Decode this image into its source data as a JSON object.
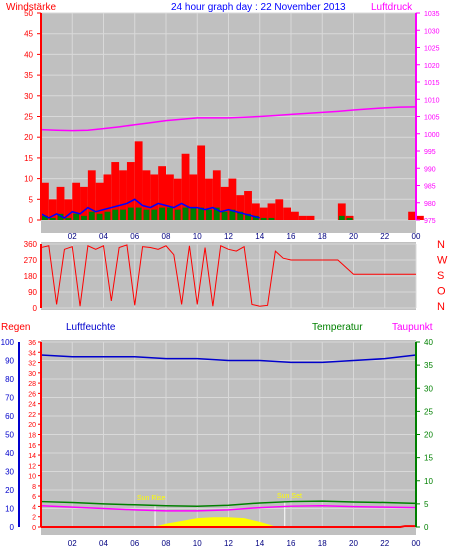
{
  "header": {
    "windstaerke": "Windstärke",
    "title": "24 hour graph day : 22 November 2013",
    "luftdruck": "Luftdruck"
  },
  "labels": {
    "regen": "Regen",
    "luftfeuchte": "Luftfeuchte",
    "temperatur": "Temperatur",
    "taupunkt": "Taupunkt",
    "compass": [
      "N",
      "W",
      "S",
      "O",
      "N"
    ],
    "sun_left": "Sun Rise",
    "sun_right": "Sun Set"
  },
  "colors": {
    "panel_bg": "#c0c0c0",
    "grid": "#d9d9d9",
    "wind": "#ff0000",
    "wind_avg": "#0000ff",
    "gust_bars": "#008000",
    "pressure": "#ff00ff",
    "direction": "#ff0000",
    "humidity": "#0000cc",
    "temperature": "#008000",
    "dewpoint": "#ff00ff",
    "rain": "#ff0000",
    "solar": "#ffff00",
    "left_axis_red": "#ff0000",
    "left_axis_blue": "#0000cc",
    "right_axis_green": "#008000",
    "right_axis_magenta": "#ff00ff"
  },
  "chart_data": [
    {
      "type": "line",
      "name": "wind_pressure",
      "x_ticks": [
        "02",
        "04",
        "06",
        "08",
        "10",
        "12",
        "14",
        "16",
        "18",
        "20",
        "22",
        "00"
      ],
      "y_left_ticks": [
        0,
        5,
        10,
        15,
        20,
        25,
        30,
        35,
        40,
        45,
        50
      ],
      "y_right_ticks": [
        975,
        980,
        985,
        990,
        995,
        1000,
        1005,
        1010,
        1015,
        1020,
        1025,
        1030,
        1035
      ],
      "ylim_left": [
        0,
        50
      ],
      "ylim_right": [
        975,
        1035
      ],
      "pressure_series": {
        "x": [
          0,
          1,
          2,
          3,
          4,
          5,
          6,
          7,
          8,
          9,
          10,
          11,
          12,
          13,
          14,
          15,
          16,
          17,
          18,
          19,
          20,
          21,
          22,
          23,
          24
        ],
        "values": [
          1001.2,
          1001,
          1000.9,
          1001,
          1001.5,
          1002,
          1002.6,
          1003.2,
          1003.8,
          1004.2,
          1004.6,
          1004.6,
          1004.6,
          1004.8,
          1005,
          1005.3,
          1005.6,
          1005.9,
          1006.2,
          1006.5,
          1006.9,
          1007.2,
          1007.5,
          1007.7,
          1007.8
        ]
      },
      "wind_avg_series": {
        "x": [
          0,
          0.5,
          1,
          1.5,
          2,
          2.5,
          3,
          3.5,
          4,
          4.5,
          5,
          5.5,
          6,
          6.5,
          7,
          7.5,
          8,
          8.5,
          9,
          9.5,
          10,
          10.5,
          11,
          11.5,
          12,
          12.5,
          13,
          13.5,
          14
        ],
        "values": [
          1.5,
          0.5,
          1.5,
          0.5,
          2,
          1.5,
          3,
          2,
          2.5,
          3,
          3.5,
          4,
          5,
          3.5,
          3,
          4,
          3.5,
          3,
          4,
          3,
          3,
          2.5,
          3,
          2,
          2.5,
          2,
          1.5,
          1,
          0.5
        ]
      },
      "wind_max_series": {
        "x": [
          0,
          0.5,
          1,
          1.5,
          2,
          2.5,
          3,
          3.5,
          4,
          4.5,
          5,
          5.5,
          6,
          6.5,
          7,
          7.5,
          8,
          8.5,
          9,
          9.5,
          10,
          10.5,
          11,
          11.5,
          12,
          12.5,
          13,
          13.5,
          14,
          14.5,
          15,
          15.5,
          16,
          16.5,
          17,
          17.5,
          18,
          18.5,
          19,
          19.5,
          20,
          20.5,
          21,
          21.5,
          22,
          22.5,
          23,
          23.5,
          24
        ],
        "values": [
          9,
          5,
          8,
          5,
          9,
          8,
          12,
          9,
          11,
          14,
          12,
          14,
          19,
          12,
          11,
          13,
          11,
          10,
          16,
          11,
          18,
          10,
          12,
          8,
          10,
          6,
          7,
          4,
          3,
          4,
          5,
          3,
          2,
          1,
          1,
          0,
          0,
          0,
          4,
          1,
          0,
          0,
          0,
          0,
          0,
          0,
          0,
          2,
          1
        ]
      },
      "gust_series": {
        "x": [
          0,
          0.5,
          1,
          1.5,
          2,
          2.5,
          3,
          3.5,
          4,
          4.5,
          5,
          5.5,
          6,
          6.5,
          7,
          7.5,
          8,
          8.5,
          9,
          9.5,
          10,
          10.5,
          11,
          11.5,
          12,
          12.5,
          13,
          13.5,
          14,
          14.5,
          19,
          19.5
        ],
        "values": [
          1,
          0.5,
          1.5,
          0.5,
          1.5,
          1,
          2,
          1.5,
          2,
          2.5,
          2.5,
          3,
          3,
          2.5,
          2.5,
          3,
          3,
          2.5,
          3,
          3,
          3,
          2.5,
          3,
          2,
          2.5,
          2,
          1.5,
          1,
          0.5,
          0.5,
          1,
          0.5
        ]
      }
    },
    {
      "type": "line",
      "name": "wind_direction",
      "y_ticks": [
        0,
        90,
        180,
        270,
        360
      ],
      "ylim": [
        0,
        360
      ],
      "x": [
        0,
        0.5,
        1,
        1.5,
        2,
        2.5,
        3,
        3.5,
        4,
        4.5,
        5,
        5.5,
        6,
        6.5,
        7,
        7.5,
        8,
        8.5,
        9,
        9.5,
        10,
        10.5,
        11,
        11.5,
        12,
        12.5,
        13,
        13.5,
        14,
        14.5,
        15,
        15.5,
        16,
        17,
        18,
        19,
        20,
        21,
        22,
        23,
        24
      ],
      "values": [
        340,
        350,
        20,
        330,
        345,
        10,
        350,
        330,
        350,
        40,
        340,
        355,
        15,
        345,
        340,
        330,
        350,
        300,
        20,
        350,
        20,
        340,
        10,
        350,
        330,
        320,
        345,
        20,
        10,
        15,
        320,
        280,
        270,
        270,
        270,
        270,
        190,
        190,
        190,
        190,
        190
      ]
    },
    {
      "type": "line",
      "name": "weather",
      "y_left_ticks": [
        0,
        10,
        20,
        30,
        40,
        50,
        60,
        70,
        80,
        90,
        100
      ],
      "y_left2_ticks": [
        0,
        2,
        4,
        6,
        8,
        10,
        12,
        14,
        16,
        18,
        20,
        22,
        24,
        26,
        28,
        30,
        32,
        34,
        36
      ],
      "y_right_ticks": [
        0,
        5,
        10,
        15,
        20,
        25,
        30,
        35,
        40
      ],
      "ylim_left": [
        0,
        100
      ],
      "ylim_right": [
        0,
        40
      ],
      "humidity_series": {
        "x": [
          0,
          2,
          4,
          6,
          8,
          10,
          12,
          14,
          16,
          18,
          20,
          22,
          24
        ],
        "values": [
          93,
          92,
          92,
          92,
          91,
          91,
          90,
          90,
          89,
          89,
          90,
          91,
          93
        ]
      },
      "temperature_series": {
        "x": [
          0,
          2,
          4,
          6,
          8,
          10,
          12,
          14,
          16,
          18,
          20,
          22,
          24
        ],
        "values": [
          5.5,
          5.3,
          5,
          4.8,
          4.6,
          4.5,
          4.7,
          5.2,
          5.5,
          5.6,
          5.4,
          5.3,
          5.1
        ]
      },
      "dewpoint_series": {
        "x": [
          0,
          2,
          4,
          6,
          8,
          10,
          12,
          14,
          16,
          18,
          20,
          22,
          24
        ],
        "values": [
          4.6,
          4.3,
          4,
          3.7,
          3.5,
          3.5,
          3.7,
          4.2,
          4.5,
          4.6,
          4.4,
          4.3,
          4.2
        ]
      },
      "solar_series": {
        "x": [
          7.3,
          8,
          9,
          10,
          11,
          12,
          13,
          14,
          15
        ],
        "values": [
          0,
          0.6,
          1.2,
          1.8,
          2,
          2,
          1.8,
          1,
          0
        ]
      },
      "rain_series": {
        "x": [
          0,
          23,
          23.3,
          24
        ],
        "values": [
          0,
          0,
          0.2,
          0.2
        ]
      }
    }
  ]
}
